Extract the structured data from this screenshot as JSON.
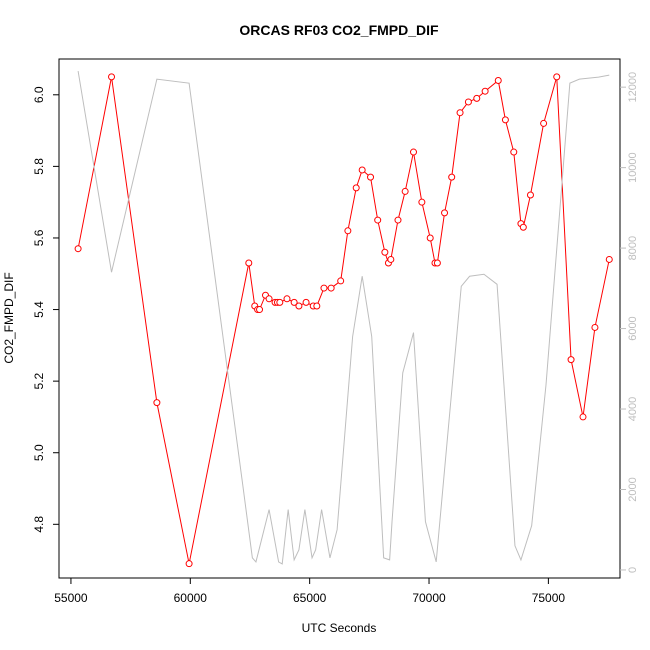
{
  "chart_data": {
    "type": "line",
    "title": "ORCAS RF03 CO2_FMPD_DIF",
    "xlabel": "UTC Seconds",
    "ylabel": "CO2_FMPD_DIF",
    "y2label": "",
    "xlim": [
      54500,
      78000
    ],
    "ylim": [
      4.65,
      6.1
    ],
    "y2lim": [
      -200,
      12700
    ],
    "x_ticks": [
      55000,
      60000,
      65000,
      70000,
      75000
    ],
    "y_ticks": [
      4.8,
      5.0,
      5.2,
      5.4,
      5.6,
      5.8,
      6.0
    ],
    "y2_ticks": [
      0,
      2000,
      4000,
      6000,
      8000,
      10000,
      12000
    ],
    "series": [
      {
        "name": "",
        "color": "#ff0000",
        "marker": "circle",
        "axis": "left",
        "x": [
          55300,
          56700,
          58600,
          59950,
          62450,
          62700,
          62820,
          62900,
          63150,
          63300,
          63550,
          63650,
          63750,
          64050,
          64350,
          64550,
          64850,
          65150,
          65300,
          65600,
          65900,
          66300,
          66600,
          66950,
          67200,
          67550,
          67850,
          68150,
          68300,
          68400,
          68700,
          69000,
          69350,
          69700,
          70050,
          70250,
          70350,
          70650,
          70950,
          71300,
          71650,
          72000,
          72350,
          72900,
          73200,
          73550,
          73850,
          73950,
          74250,
          74800,
          75350,
          75950,
          76450,
          76950,
          77550
        ],
        "y": [
          5.57,
          6.05,
          5.14,
          4.69,
          5.53,
          5.41,
          5.4,
          5.4,
          5.44,
          5.43,
          5.42,
          5.42,
          5.42,
          5.43,
          5.42,
          5.41,
          5.42,
          5.41,
          5.41,
          5.46,
          5.46,
          5.48,
          5.62,
          5.74,
          5.79,
          5.77,
          5.65,
          5.56,
          5.53,
          5.54,
          5.65,
          5.73,
          5.84,
          5.7,
          5.6,
          5.53,
          5.53,
          5.67,
          5.77,
          5.95,
          5.98,
          5.99,
          6.01,
          6.04,
          5.93,
          5.84,
          5.64,
          5.63,
          5.72,
          5.92,
          6.05,
          5.26,
          5.1,
          5.35,
          5.54
        ]
      },
      {
        "name": "",
        "color": "#bebebe",
        "marker": "none",
        "axis": "right",
        "x": [
          55300,
          56700,
          58600,
          59950,
          62200,
          62600,
          62750,
          63300,
          63700,
          63850,
          64100,
          64350,
          64550,
          64800,
          65100,
          65250,
          65500,
          65850,
          66150,
          66800,
          67200,
          67600,
          68100,
          68350,
          68450,
          68900,
          69350,
          69850,
          70300,
          71350,
          71700,
          72300,
          72850,
          73600,
          73850,
          74300,
          74900,
          75900,
          76300,
          77100,
          77550
        ],
        "y": [
          12400,
          7400,
          12200,
          12100,
          2100,
          300,
          200,
          1500,
          200,
          150,
          1500,
          250,
          500,
          1500,
          300,
          500,
          1500,
          300,
          1000,
          5800,
          7300,
          5800,
          300,
          250,
          1200,
          4900,
          5900,
          1200,
          200,
          7050,
          7300,
          7350,
          7100,
          600,
          250,
          1100,
          4600,
          12100,
          12200,
          12250,
          12300
        ]
      }
    ]
  }
}
